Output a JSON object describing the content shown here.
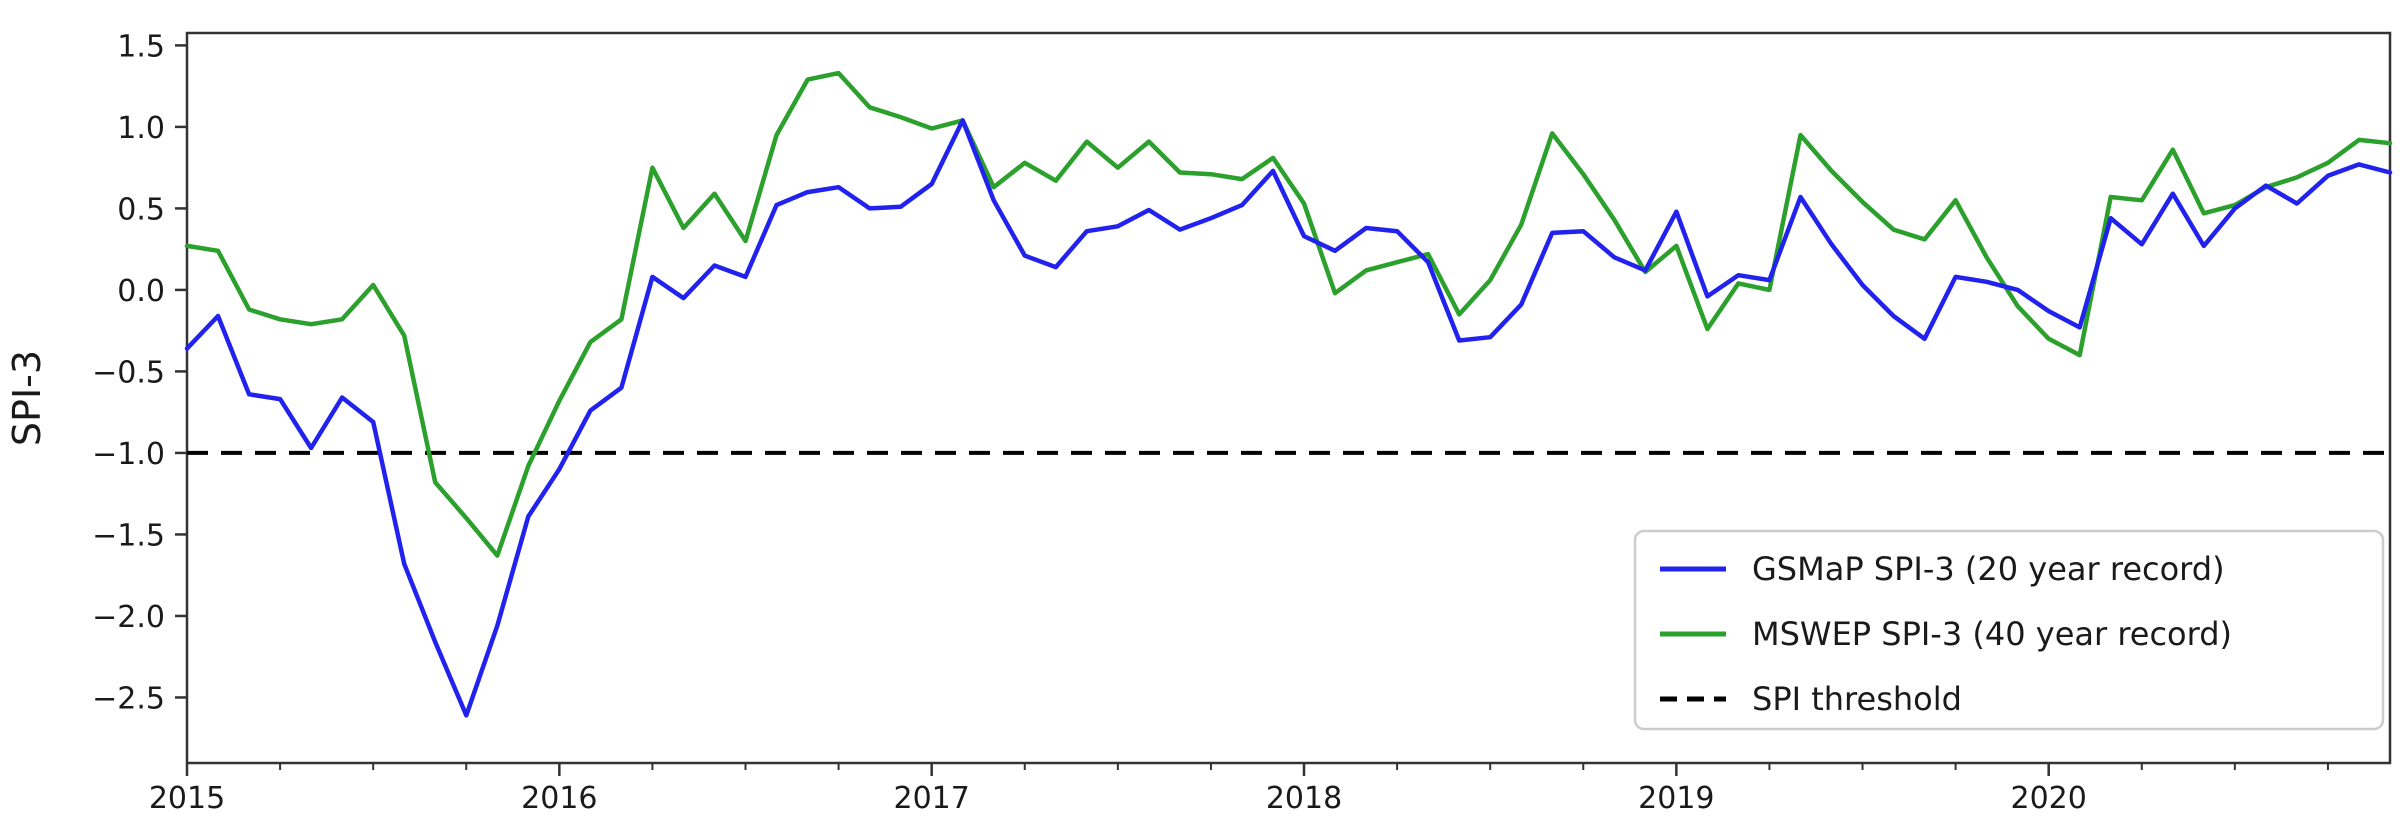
{
  "figure": {
    "background": "#ffffff"
  },
  "axes": {
    "ylabel": "SPI-3",
    "y_tick_labels": [
      "1.5",
      "1.0",
      "0.5",
      "0.0",
      "−0.5",
      "−1.0",
      "−1.5",
      "−2.0",
      "−2.5"
    ],
    "y_tick_values": [
      1.5,
      1.0,
      0.5,
      0.0,
      -0.5,
      -1.0,
      -1.5,
      -2.0,
      -2.5
    ],
    "x_tick_labels": [
      "2015",
      "2016",
      "2017",
      "2018",
      "2019",
      "2020"
    ],
    "x_tick_month_index": [
      0,
      12,
      24,
      36,
      48,
      60
    ],
    "minor_tick_interval_months": 3,
    "spine_color": "#333333"
  },
  "legend": {
    "items": [
      {
        "label": "GSMaP SPI-3 (20 year record)",
        "color": "#2222ee",
        "style": "solid"
      },
      {
        "label": "MSWEP SPI-3 (40 year record)",
        "color": "#2ca02c",
        "style": "dashed-none"
      },
      {
        "label": "SPI threshold",
        "color": "#000000",
        "style": "dashed"
      }
    ],
    "border_color": "#cccccc",
    "background": "#ffffff"
  },
  "chart_data": {
    "type": "line",
    "title": "",
    "xlabel": "",
    "ylabel": "SPI-3",
    "x_frequency": "monthly",
    "x_start": "2015-01",
    "x_end": "2020-12",
    "x_tick_labels": [
      "2015",
      "2016",
      "2017",
      "2018",
      "2019",
      "2020"
    ],
    "ylim": [
      -2.902,
      1.576
    ],
    "grid": false,
    "legend_position": "lower right",
    "threshold": {
      "label": "SPI threshold",
      "value": -1.0,
      "color": "#000000"
    },
    "series": [
      {
        "name": "GSMaP SPI-3 (20 year record)",
        "color": "#2222ee",
        "values": [
          -0.36,
          -0.16,
          -0.64,
          -0.67,
          -0.97,
          -0.66,
          -0.81,
          -1.68,
          -2.16,
          -2.61,
          -2.06,
          -1.39,
          -1.1,
          -0.74,
          -0.6,
          0.08,
          -0.05,
          0.15,
          0.08,
          0.52,
          0.6,
          0.63,
          0.5,
          0.51,
          0.65,
          1.04,
          0.55,
          0.21,
          0.14,
          0.36,
          0.39,
          0.49,
          0.37,
          0.44,
          0.52,
          0.73,
          0.33,
          0.24,
          0.38,
          0.36,
          0.17,
          -0.31,
          -0.29,
          -0.09,
          0.35,
          0.36,
          0.2,
          0.12,
          0.48,
          -0.04,
          0.09,
          0.06,
          0.57,
          0.28,
          0.03,
          -0.16,
          -0.3,
          0.08,
          0.05,
          0.0,
          -0.13,
          -0.23,
          0.44,
          0.28,
          0.59,
          0.27,
          0.5,
          0.64,
          0.53,
          0.7,
          0.77,
          0.72
        ]
      },
      {
        "name": "MSWEP SPI-3 (40 year record)",
        "color": "#2ca02c",
        "values": [
          0.27,
          0.24,
          -0.12,
          -0.18,
          -0.21,
          -0.18,
          0.03,
          -0.28,
          -1.18,
          -1.4,
          -1.63,
          -1.08,
          -0.68,
          -0.32,
          -0.18,
          0.75,
          0.38,
          0.59,
          0.3,
          0.95,
          1.29,
          1.33,
          1.12,
          1.06,
          0.99,
          1.04,
          0.63,
          0.78,
          0.67,
          0.91,
          0.75,
          0.91,
          0.72,
          0.71,
          0.68,
          0.81,
          0.53,
          -0.02,
          0.12,
          0.17,
          0.22,
          -0.15,
          0.06,
          0.4,
          0.96,
          0.71,
          0.43,
          0.11,
          0.27,
          -0.24,
          0.04,
          0.0,
          0.95,
          0.73,
          0.54,
          0.37,
          0.31,
          0.55,
          0.2,
          -0.1,
          -0.3,
          -0.4,
          0.57,
          0.55,
          0.86,
          0.47,
          0.52,
          0.63,
          0.69,
          0.78,
          0.92,
          0.9
        ]
      }
    ]
  }
}
